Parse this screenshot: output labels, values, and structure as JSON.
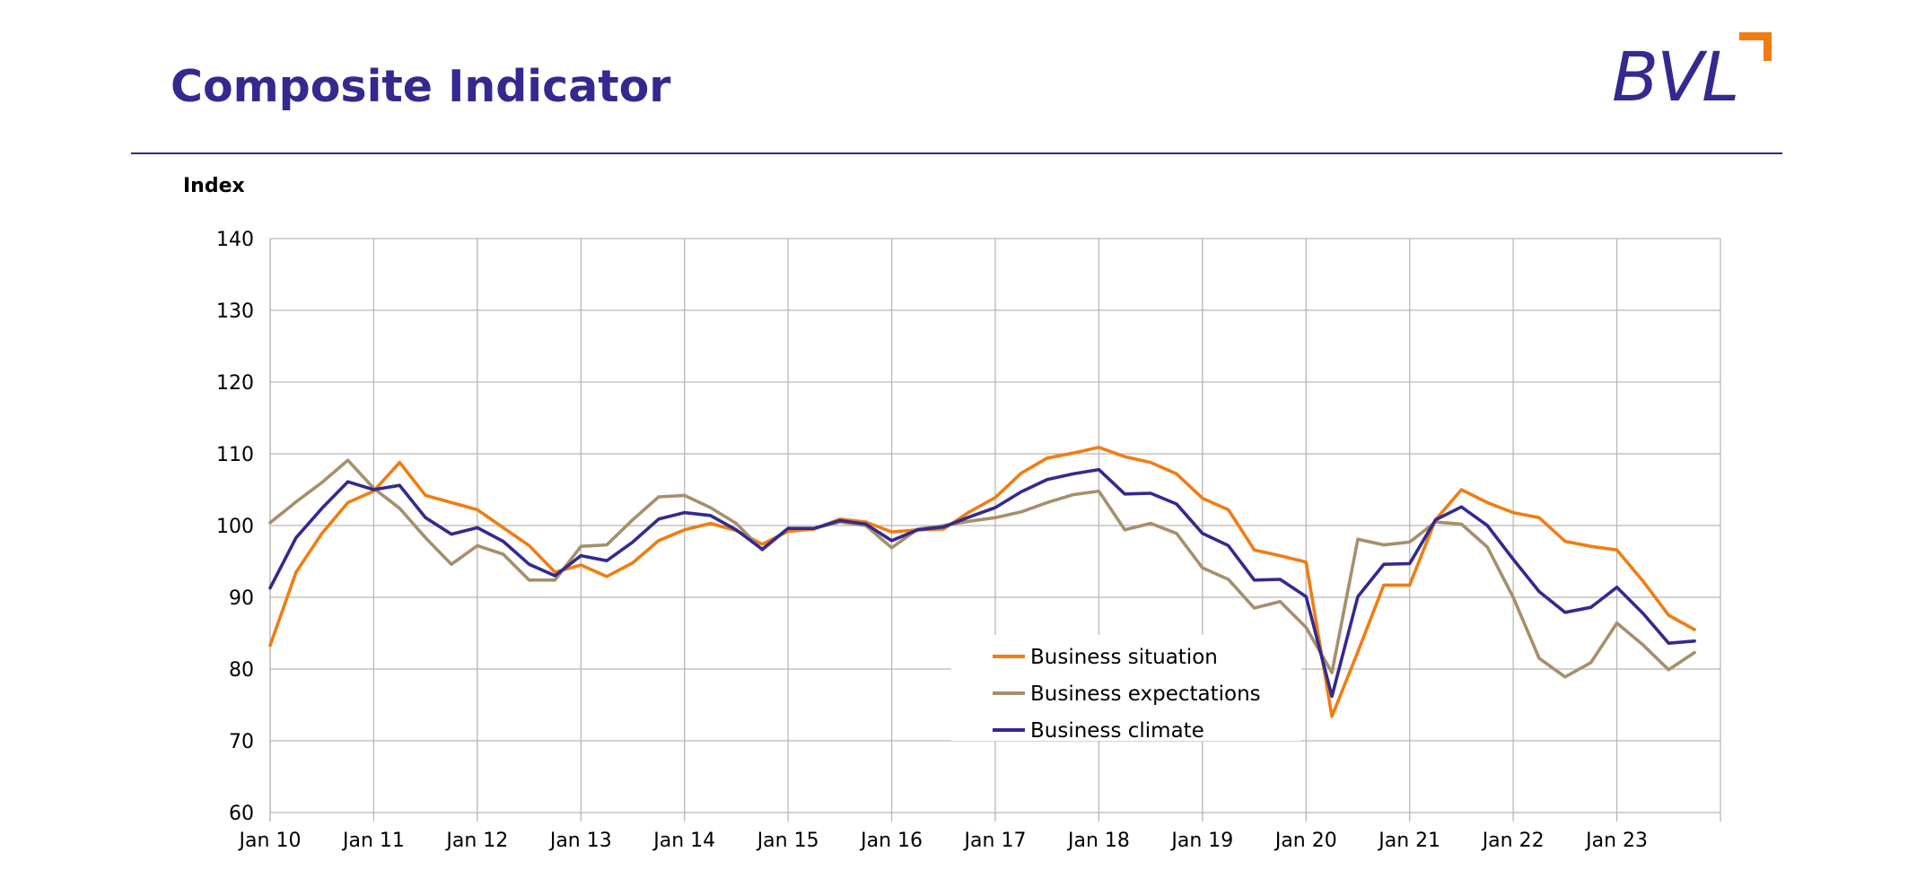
{
  "header": {
    "title": "Composite Indicator",
    "logo_text": "BVL"
  },
  "colors": {
    "brand": "#33298f",
    "accent": "#f07d12",
    "grid": "#b8b8b8",
    "rule": "#33298f"
  },
  "chart_data": {
    "type": "line",
    "ylabel": "Index",
    "ylim": [
      60,
      140
    ],
    "yticks": [
      60,
      70,
      80,
      90,
      100,
      110,
      120,
      130,
      140
    ],
    "x_start": "Jan 10",
    "x_tick_labels": [
      "Jan 10",
      "Jan 11",
      "Jan 12",
      "Jan 13",
      "Jan 14",
      "Jan 15",
      "Jan 16",
      "Jan 17",
      "Jan 18",
      "Jan 19",
      "Jan 20",
      "Jan 21",
      "Jan 22",
      "Jan 23"
    ],
    "xlim": [
      "Jan 10",
      "Jan 24"
    ],
    "grid": true,
    "legend_position": "bottom-center",
    "series": [
      {
        "name": "Business situation",
        "color": "#f07d12",
        "x": [
          "Jan 10",
          "Apr 10",
          "Jul 10",
          "Oct 10",
          "Jan 11",
          "Apr 11",
          "Jul 11",
          "Oct 11",
          "Jan 12",
          "Apr 12",
          "Jul 12",
          "Oct 12",
          "Jan 13",
          "Apr 13",
          "Jul 13",
          "Oct 13",
          "Jan 14",
          "Apr 14",
          "Jul 14",
          "Oct 14",
          "Jan 15",
          "Apr 15",
          "Jul 15",
          "Oct 15",
          "Jan 16",
          "Apr 16",
          "Jul 16",
          "Oct 16",
          "Jan 17",
          "Apr 17",
          "Jul 17",
          "Oct 17",
          "Jan 18",
          "Apr 18",
          "Jul 18",
          "Oct 18",
          "Jan 19",
          "Apr 19",
          "Jul 19",
          "Oct 19",
          "Jan 20",
          "Apr 20",
          "Jul 20",
          "Oct 20",
          "Jan 21",
          "Apr 21",
          "Jul 21",
          "Oct 21",
          "Jan 22",
          "Apr 22",
          "Jul 22",
          "Oct 22",
          "Jan 23",
          "Apr 23",
          "Jul 23",
          "Oct 23",
          "Jan 24"
        ],
        "values": [
          83.3,
          93.5,
          98.9,
          103.2,
          104.8,
          108.8,
          104.2,
          103.2,
          102.2,
          99.7,
          97.2,
          93.5,
          94.5,
          92.9,
          94.8,
          97.9,
          99.4,
          100.3,
          99.3,
          97.4,
          99.2,
          99.5,
          100.9,
          100.5,
          99.1,
          99.4,
          99.5,
          101.9,
          103.9,
          107.3,
          109.4,
          110.1,
          110.9,
          109.6,
          108.8,
          107.2,
          103.8,
          102.2,
          96.6,
          95.8,
          94.9,
          73.4,
          82.4,
          91.7,
          91.7,
          100.8,
          105.0,
          103.2,
          101.8,
          101.1,
          97.8,
          97.1,
          96.6,
          92.3,
          87.5,
          85.5,
          null
        ]
      },
      {
        "name": "Business expectations",
        "color": "#a68f6b",
        "x": [
          "Jan 10",
          "Apr 10",
          "Jul 10",
          "Oct 10",
          "Jan 11",
          "Apr 11",
          "Jul 11",
          "Oct 11",
          "Jan 12",
          "Apr 12",
          "Jul 12",
          "Oct 12",
          "Jan 13",
          "Apr 13",
          "Jul 13",
          "Oct 13",
          "Jan 14",
          "Apr 14",
          "Jul 14",
          "Oct 14",
          "Jan 15",
          "Apr 15",
          "Jul 15",
          "Oct 15",
          "Jan 16",
          "Apr 16",
          "Jul 16",
          "Oct 16",
          "Jan 17",
          "Apr 17",
          "Jul 17",
          "Oct 17",
          "Jan 18",
          "Apr 18",
          "Jul 18",
          "Oct 18",
          "Jan 19",
          "Apr 19",
          "Jul 19",
          "Oct 19",
          "Jan 20",
          "Apr 20",
          "Jul 20",
          "Oct 20",
          "Jan 21",
          "Apr 21",
          "Jul 21",
          "Oct 21",
          "Jan 22",
          "Apr 22",
          "Jul 22",
          "Oct 22",
          "Jan 23",
          "Apr 23",
          "Jul 23",
          "Oct 23",
          "Jan 24"
        ],
        "values": [
          100.4,
          103.3,
          106.0,
          109.1,
          105.2,
          102.4,
          98.3,
          94.6,
          97.2,
          96.0,
          92.4,
          92.4,
          97.1,
          97.3,
          100.8,
          104.0,
          104.2,
          102.5,
          100.3,
          96.6,
          99.6,
          99.6,
          100.5,
          100.0,
          96.9,
          99.5,
          100.0,
          100.6,
          101.1,
          101.9,
          103.2,
          104.3,
          104.8,
          99.4,
          100.3,
          98.9,
          94.1,
          92.5,
          88.5,
          89.4,
          85.8,
          79.5,
          98.1,
          97.3,
          97.7,
          100.5,
          100.2,
          97.0,
          90.0,
          81.5,
          78.9,
          80.9,
          86.4,
          83.4,
          79.9,
          82.3,
          null
        ]
      },
      {
        "name": "Business climate",
        "color": "#33298f",
        "x": [
          "Jan 10",
          "Apr 10",
          "Jul 10",
          "Oct 10",
          "Jan 11",
          "Apr 11",
          "Jul 11",
          "Oct 11",
          "Jan 12",
          "Apr 12",
          "Jul 12",
          "Oct 12",
          "Jan 13",
          "Apr 13",
          "Jul 13",
          "Oct 13",
          "Jan 14",
          "Apr 14",
          "Jul 14",
          "Oct 14",
          "Jan 15",
          "Apr 15",
          "Jul 15",
          "Oct 15",
          "Jan 16",
          "Apr 16",
          "Jul 16",
          "Oct 16",
          "Jan 17",
          "Apr 17",
          "Jul 17",
          "Oct 17",
          "Jan 18",
          "Apr 18",
          "Jul 18",
          "Oct 18",
          "Jan 19",
          "Apr 19",
          "Jul 19",
          "Oct 19",
          "Jan 20",
          "Apr 20",
          "Jul 20",
          "Oct 20",
          "Jan 21",
          "Apr 21",
          "Jul 21",
          "Oct 21",
          "Jan 22",
          "Apr 22",
          "Jul 22",
          "Oct 22",
          "Jan 23",
          "Apr 23",
          "Jul 23",
          "Oct 23",
          "Jan 24"
        ],
        "values": [
          91.3,
          98.3,
          102.4,
          106.1,
          105.0,
          105.6,
          101.1,
          98.8,
          99.7,
          97.8,
          94.6,
          93.0,
          95.8,
          95.1,
          97.7,
          100.9,
          101.8,
          101.4,
          99.4,
          96.7,
          99.6,
          99.6,
          100.7,
          100.2,
          97.9,
          99.4,
          99.8,
          101.2,
          102.5,
          104.7,
          106.4,
          107.2,
          107.8,
          104.4,
          104.5,
          103.0,
          98.9,
          97.2,
          92.4,
          92.5,
          90.1,
          76.2,
          90.1,
          94.6,
          94.7,
          100.8,
          102.6,
          100.0,
          95.3,
          90.8,
          87.9,
          88.6,
          91.4,
          87.8,
          83.6,
          83.9,
          null
        ]
      }
    ]
  }
}
